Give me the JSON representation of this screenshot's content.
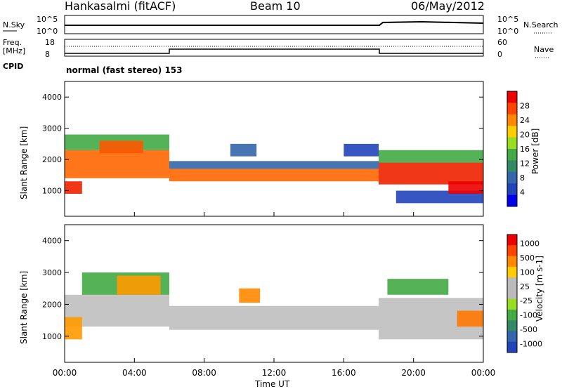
{
  "header": {
    "station": "Hankasalmi (fitACF)",
    "beam": "Beam 10",
    "date": "06/May/2012"
  },
  "noise_panel": {
    "left_label": "N.Sky",
    "right_label": "N.Search",
    "tick_top": "10^5",
    "tick_bottom": "10^0"
  },
  "freq_panel": {
    "left_label_1": "Freq.",
    "left_label_2": "[MHz]",
    "left_tick_top": "18",
    "left_tick_bottom": "8",
    "right_label": "Nave",
    "right_tick_top": "60",
    "right_tick_bottom": "0"
  },
  "cpid_panel": {
    "label": "CPID",
    "value": "normal (fast stereo) 153"
  },
  "chart_data": [
    {
      "type": "heatmap",
      "name": "power",
      "ylabel": "Slant Range [km]",
      "ylim": [
        180,
        4500
      ],
      "yticks": [
        "1000",
        "2000",
        "3000",
        "4000"
      ],
      "xlim_hours": [
        0,
        24
      ],
      "colorbar": {
        "label": "Power [dB]",
        "ticks": [
          "4",
          "8",
          "12",
          "16",
          "20",
          "24",
          "28"
        ],
        "colors": [
          "#0000ee",
          "#2244bb",
          "#3366aa",
          "#338866",
          "#44aa44",
          "#99dd22",
          "#ffcc00",
          "#ff8800",
          "#ff4400",
          "#ee0000"
        ]
      },
      "bands": [
        {
          "t": [
            0.0,
            1.0
          ],
          "r": [
            900,
            1300
          ],
          "color": "#ee2200"
        },
        {
          "t": [
            0.0,
            6.0
          ],
          "r": [
            1400,
            2300
          ],
          "color": "#ff6600"
        },
        {
          "t": [
            0.0,
            6.0
          ],
          "r": [
            2300,
            2800
          ],
          "color": "#44aa44"
        },
        {
          "t": [
            2.0,
            4.5
          ],
          "r": [
            2200,
            2600
          ],
          "color": "#ff5500"
        },
        {
          "t": [
            6.0,
            18.0
          ],
          "r": [
            1300,
            1700
          ],
          "color": "#ff6600"
        },
        {
          "t": [
            6.0,
            18.0
          ],
          "r": [
            1700,
            1950
          ],
          "color": "#3366aa"
        },
        {
          "t": [
            9.5,
            11.0
          ],
          "r": [
            2100,
            2500
          ],
          "color": "#3366aa"
        },
        {
          "t": [
            16.0,
            18.0
          ],
          "r": [
            2100,
            2500
          ],
          "color": "#2244bb"
        },
        {
          "t": [
            18.0,
            24.0
          ],
          "r": [
            1200,
            1900
          ],
          "color": "#ee2200"
        },
        {
          "t": [
            18.0,
            24.0
          ],
          "r": [
            1900,
            2300
          ],
          "color": "#44aa44"
        },
        {
          "t": [
            19.0,
            24.0
          ],
          "r": [
            600,
            1000
          ],
          "color": "#2244bb"
        },
        {
          "t": [
            22.0,
            24.0
          ],
          "r": [
            900,
            1300
          ],
          "color": "#ee0000"
        }
      ]
    },
    {
      "type": "heatmap",
      "name": "velocity",
      "ylabel": "Slant Range [km]",
      "ylim": [
        180,
        4500
      ],
      "yticks": [
        "1000",
        "2000",
        "3000",
        "4000"
      ],
      "xlim_hours": [
        0,
        24
      ],
      "colorbar": {
        "label": "Velocity [m s-1]",
        "ticks": [
          "1000",
          "500",
          "100",
          "25",
          "-25",
          "-100",
          "-500",
          "-1000"
        ],
        "colors": [
          "#2244bb",
          "#3366aa",
          "#338866",
          "#44aa44",
          "#99dd22",
          "#bbbbbb",
          "#bbbbbb",
          "#ffcc00",
          "#ff8800",
          "#ff4400",
          "#ee0000"
        ]
      },
      "bands": [
        {
          "t": [
            0.0,
            6.0
          ],
          "r": [
            1300,
            2300
          ],
          "color": "#bfbfbf"
        },
        {
          "t": [
            1.0,
            6.0
          ],
          "r": [
            2300,
            3000
          ],
          "color": "#44aa44"
        },
        {
          "t": [
            3.0,
            5.5
          ],
          "r": [
            2300,
            2900
          ],
          "color": "#ff9900"
        },
        {
          "t": [
            0.0,
            1.0
          ],
          "r": [
            900,
            1600
          ],
          "color": "#ff9900"
        },
        {
          "t": [
            6.0,
            18.0
          ],
          "r": [
            1200,
            1950
          ],
          "color": "#bfbfbf"
        },
        {
          "t": [
            10.0,
            11.2
          ],
          "r": [
            2050,
            2500
          ],
          "color": "#ff8800"
        },
        {
          "t": [
            18.0,
            24.0
          ],
          "r": [
            900,
            2200
          ],
          "color": "#bfbfbf"
        },
        {
          "t": [
            18.5,
            22.0
          ],
          "r": [
            2300,
            2800
          ],
          "color": "#44aa44"
        },
        {
          "t": [
            22.5,
            24.0
          ],
          "r": [
            1300,
            1800
          ],
          "color": "#ff7700"
        }
      ]
    }
  ],
  "x_axis": {
    "ticks": [
      "00:00",
      "04:00",
      "08:00",
      "12:00",
      "16:00",
      "20:00",
      "00:00"
    ],
    "label": "Time UT"
  }
}
